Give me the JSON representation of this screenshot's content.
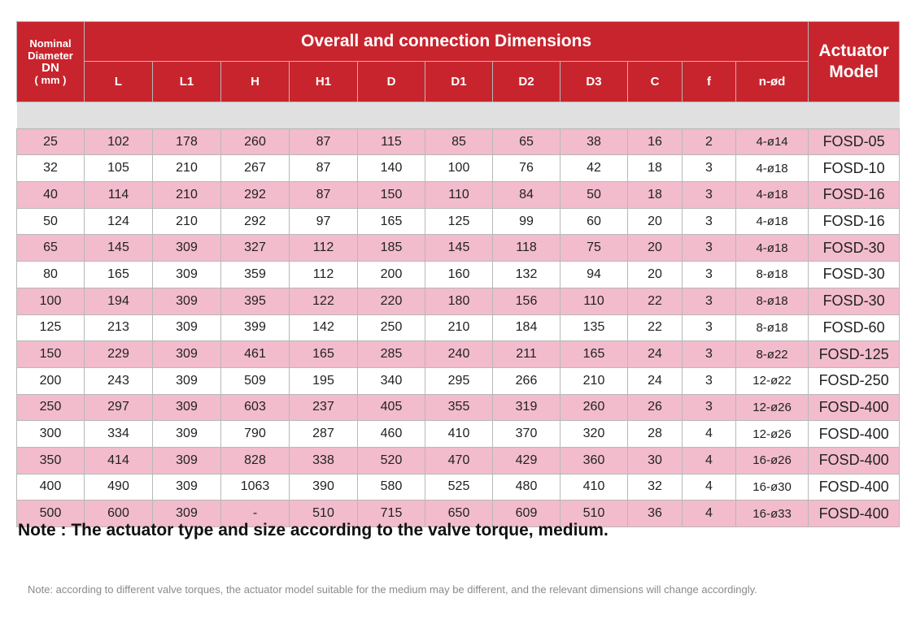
{
  "header": {
    "dn_label_line1": "Nominal",
    "dn_label_line2": "Diameter",
    "dn_label_line3": "DN",
    "dn_label_line4": "( mm )",
    "overall_title": "Overall and connection Dimensions",
    "actuator_line1": "Actuator",
    "actuator_line2": "Model",
    "columns": [
      "L",
      "L1",
      "H",
      "H1",
      "D",
      "D1",
      "D2",
      "D3",
      "C",
      "f",
      "n-ød"
    ]
  },
  "rows": [
    {
      "dn": "25",
      "L": "102",
      "L1": "178",
      "H": "260",
      "H1": "87",
      "D": "115",
      "D1": "85",
      "D2": "65",
      "D3": "38",
      "C": "16",
      "f": "2",
      "nd": "4-ø14",
      "model": "FOSD-05"
    },
    {
      "dn": "32",
      "L": "105",
      "L1": "210",
      "H": "267",
      "H1": "87",
      "D": "140",
      "D1": "100",
      "D2": "76",
      "D3": "42",
      "C": "18",
      "f": "3",
      "nd": "4-ø18",
      "model": "FOSD-10"
    },
    {
      "dn": "40",
      "L": "114",
      "L1": "210",
      "H": "292",
      "H1": "87",
      "D": "150",
      "D1": "110",
      "D2": "84",
      "D3": "50",
      "C": "18",
      "f": "3",
      "nd": "4-ø18",
      "model": "FOSD-16"
    },
    {
      "dn": "50",
      "L": "124",
      "L1": "210",
      "H": "292",
      "H1": "97",
      "D": "165",
      "D1": "125",
      "D2": "99",
      "D3": "60",
      "C": "20",
      "f": "3",
      "nd": "4-ø18",
      "model": "FOSD-16"
    },
    {
      "dn": "65",
      "L": "145",
      "L1": "309",
      "H": "327",
      "H1": "112",
      "D": "185",
      "D1": "145",
      "D2": "118",
      "D3": "75",
      "C": "20",
      "f": "3",
      "nd": "4-ø18",
      "model": "FOSD-30"
    },
    {
      "dn": "80",
      "L": "165",
      "L1": "309",
      "H": "359",
      "H1": "112",
      "D": "200",
      "D1": "160",
      "D2": "132",
      "D3": "94",
      "C": "20",
      "f": "3",
      "nd": "8-ø18",
      "model": "FOSD-30"
    },
    {
      "dn": "100",
      "L": "194",
      "L1": "309",
      "H": "395",
      "H1": "122",
      "D": "220",
      "D1": "180",
      "D2": "156",
      "D3": "110",
      "C": "22",
      "f": "3",
      "nd": "8-ø18",
      "model": "FOSD-30"
    },
    {
      "dn": "125",
      "L": "213",
      "L1": "309",
      "H": "399",
      "H1": "142",
      "D": "250",
      "D1": "210",
      "D2": "184",
      "D3": "135",
      "C": "22",
      "f": "3",
      "nd": "8-ø18",
      "model": "FOSD-60"
    },
    {
      "dn": "150",
      "L": "229",
      "L1": "309",
      "H": "461",
      "H1": "165",
      "D": "285",
      "D1": "240",
      "D2": "211",
      "D3": "165",
      "C": "24",
      "f": "3",
      "nd": "8-ø22",
      "model": "FOSD-125"
    },
    {
      "dn": "200",
      "L": "243",
      "L1": "309",
      "H": "509",
      "H1": "195",
      "D": "340",
      "D1": "295",
      "D2": "266",
      "D3": "210",
      "C": "24",
      "f": "3",
      "nd": "12-ø22",
      "model": "FOSD-250"
    },
    {
      "dn": "250",
      "L": "297",
      "L1": "309",
      "H": "603",
      "H1": "237",
      "D": "405",
      "D1": "355",
      "D2": "319",
      "D3": "260",
      "C": "26",
      "f": "3",
      "nd": "12-ø26",
      "model": "FOSD-400"
    },
    {
      "dn": "300",
      "L": "334",
      "L1": "309",
      "H": "790",
      "H1": "287",
      "D": "460",
      "D1": "410",
      "D2": "370",
      "D3": "320",
      "C": "28",
      "f": "4",
      "nd": "12-ø26",
      "model": "FOSD-400"
    },
    {
      "dn": "350",
      "L": "414",
      "L1": "309",
      "H": "828",
      "H1": "338",
      "D": "520",
      "D1": "470",
      "D2": "429",
      "D3": "360",
      "C": "30",
      "f": "4",
      "nd": "16-ø26",
      "model": "FOSD-400"
    },
    {
      "dn": "400",
      "L": "490",
      "L1": "309",
      "H": "1063",
      "H1": "390",
      "D": "580",
      "D1": "525",
      "D2": "480",
      "D3": "410",
      "C": "32",
      "f": "4",
      "nd": "16-ø30",
      "model": "FOSD-400"
    },
    {
      "dn": "500",
      "L": "600",
      "L1": "309",
      "H": "-",
      "H1": "510",
      "D": "715",
      "D1": "650",
      "D2": "609",
      "D3": "510",
      "C": "36",
      "f": "4",
      "nd": "16-ø33",
      "model": "FOSD-400"
    }
  ],
  "notes": {
    "main": "Note : The actuator type and size according to the valve torque, medium.",
    "small": "Note: according to different valve torques, the actuator model suitable for the medium may be different, and the relevant dimensions will change accordingly."
  },
  "colors": {
    "header_red": "#c8242d",
    "row_pink": "#f2bccd",
    "row_white": "#ffffff"
  }
}
